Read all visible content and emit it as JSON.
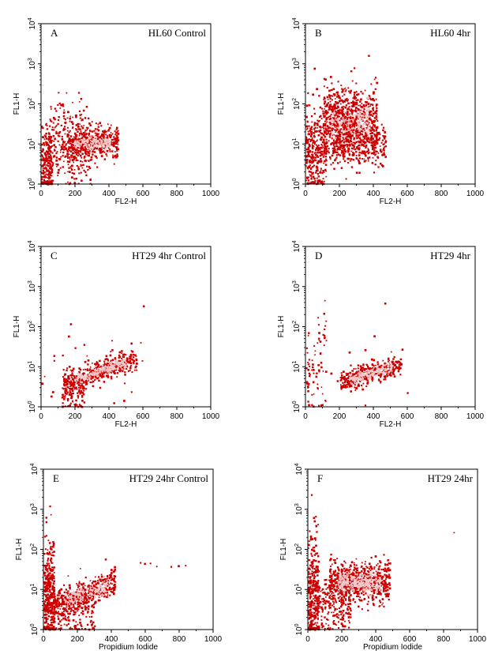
{
  "chart_data": [
    {
      "type": "scatter",
      "letter": "A",
      "title": "HL60 Control",
      "xlabel": "FL2-H",
      "ylabel": "FL1-H",
      "xlim": [
        0,
        1000
      ],
      "ylim_log10": [
        0,
        4
      ],
      "yscale": "log",
      "xticks": [
        "0",
        "200",
        "400",
        "600",
        "800",
        "1000"
      ],
      "yticks": [
        "10",
        "10",
        "10",
        "10",
        "10"
      ],
      "ytick_exponents": [
        "0",
        "1",
        "2",
        "3",
        "4"
      ],
      "point_color": "#cc0000",
      "core_color": "#f2c6c6",
      "clusters": [
        {
          "x_range": [
            0,
            60
          ],
          "log_y_center": 0.45,
          "log_y_spread": 0.5,
          "n": 220
        },
        {
          "x_range": [
            40,
            300
          ],
          "log_y_center": 0.85,
          "log_y_spread": 0.45,
          "n": 260
        },
        {
          "x_range": [
            150,
            450
          ],
          "log_y_center": 1.05,
          "log_y_spread": 0.18,
          "n": 380,
          "dense": true
        },
        {
          "x_range": [
            60,
            260
          ],
          "log_y_center": 1.55,
          "log_y_spread": 0.3,
          "n": 60
        }
      ]
    },
    {
      "type": "scatter",
      "letter": "B",
      "title": "HL60 4hr",
      "xlabel": "FL2-H",
      "ylabel": "FL1-H",
      "xlim": [
        0,
        1000
      ],
      "ylim_log10": [
        0,
        4
      ],
      "yscale": "log",
      "xticks": [
        "0",
        "200",
        "400",
        "600",
        "800",
        "1000"
      ],
      "yticks": [
        "10",
        "10",
        "10",
        "10",
        "10"
      ],
      "ytick_exponents": [
        "0",
        "1",
        "2",
        "3",
        "4"
      ],
      "point_color": "#cc0000",
      "core_color": "#f2c6c6",
      "clusters": [
        {
          "x_range": [
            0,
            120
          ],
          "log_y_center": 0.9,
          "log_y_spread": 0.6,
          "n": 320
        },
        {
          "x_range": [
            100,
            420
          ],
          "log_y_center": 1.5,
          "log_y_spread": 0.45,
          "n": 650,
          "dense": true
        },
        {
          "x_range": [
            150,
            470
          ],
          "log_y_center": 1.05,
          "log_y_spread": 0.25,
          "n": 300
        },
        {
          "x_range": [
            120,
            300
          ],
          "log_y_center": 2.0,
          "log_y_spread": 0.3,
          "n": 120
        }
      ]
    },
    {
      "type": "scatter",
      "letter": "C",
      "title": "HT29 4hr Control",
      "xlabel": "FL2-H",
      "ylabel": "FL1-H",
      "xlim": [
        0,
        1000
      ],
      "ylim_log10": [
        0,
        4
      ],
      "yscale": "log",
      "xticks": [
        "0",
        "200",
        "400",
        "600",
        "800",
        "1000"
      ],
      "yticks": [
        "10",
        "10",
        "10",
        "10",
        "10"
      ],
      "ytick_exponents": [
        "0",
        "1",
        "2",
        "3",
        "4"
      ],
      "point_color": "#cc0000",
      "core_color": "#f2c6c6",
      "clusters": [
        {
          "x_range": [
            130,
            560
          ],
          "log_y_center": 0.9,
          "log_y_spread": 0.14,
          "n": 420,
          "dense": true,
          "slope": 0.0015
        },
        {
          "x_range": [
            120,
            250
          ],
          "log_y_center": 0.35,
          "log_y_spread": 0.3,
          "n": 90
        },
        {
          "x_range": [
            0,
            600
          ],
          "log_y_center": 1.2,
          "log_y_spread": 0.7,
          "n": 25
        }
      ]
    },
    {
      "type": "scatter",
      "letter": "D",
      "title": "HT29 4hr",
      "xlabel": "FL2-H",
      "ylabel": "FL1-H",
      "xlim": [
        0,
        1000
      ],
      "ylim_log10": [
        0,
        4
      ],
      "yscale": "log",
      "xticks": [
        "0",
        "200",
        "400",
        "600",
        "800",
        "1000"
      ],
      "yticks": [
        "10",
        "10",
        "10",
        "10",
        "10"
      ],
      "ytick_exponents": [
        "0",
        "1",
        "2",
        "3",
        "4"
      ],
      "point_color": "#cc0000",
      "core_color": "#f2c6c6",
      "clusters": [
        {
          "x_range": [
            200,
            560
          ],
          "log_y_center": 0.85,
          "log_y_spread": 0.13,
          "n": 380,
          "dense": true,
          "slope": 0.0012
        },
        {
          "x_range": [
            0,
            120
          ],
          "log_y_center": 0.9,
          "log_y_spread": 0.7,
          "n": 70
        },
        {
          "x_range": [
            0,
            600
          ],
          "log_y_center": 1.3,
          "log_y_spread": 0.7,
          "n": 20
        }
      ]
    },
    {
      "type": "scatter",
      "letter": "E",
      "title": "HT29 24hr Control",
      "xlabel": "Propidium Iodide",
      "ylabel": "FL1-H",
      "xlim": [
        0,
        1000
      ],
      "ylim_log10": [
        0,
        4
      ],
      "yscale": "log",
      "xticks": [
        "0",
        "200",
        "400",
        "600",
        "800",
        "1000"
      ],
      "yticks": [
        "10",
        "10",
        "10",
        "10",
        "10"
      ],
      "ytick_exponents": [
        "0",
        "1",
        "2",
        "3",
        "4"
      ],
      "point_color": "#cc0000",
      "core_color": "#f2c6c6",
      "clusters": [
        {
          "x_range": [
            0,
            60
          ],
          "log_y_center": 0.9,
          "log_y_spread": 0.7,
          "n": 380
        },
        {
          "x_range": [
            60,
            420
          ],
          "log_y_center": 0.9,
          "log_y_spread": 0.18,
          "n": 420,
          "dense": true,
          "slope": 0.0015
        },
        {
          "x_range": [
            60,
            300
          ],
          "log_y_center": 0.4,
          "log_y_spread": 0.3,
          "n": 140
        },
        {
          "x_range": [
            560,
            880
          ],
          "log_y_center": 1.6,
          "log_y_spread": 0.05,
          "n": 7
        }
      ]
    },
    {
      "type": "scatter",
      "letter": "F",
      "title": "HT29 24hr",
      "xlabel": "Propidium Iodide",
      "ylabel": "FL1-H",
      "xlim": [
        0,
        1000
      ],
      "ylim_log10": [
        0,
        4
      ],
      "yscale": "log",
      "xticks": [
        "0",
        "200",
        "400",
        "600",
        "800",
        "1000"
      ],
      "yticks": [
        "10",
        "10",
        "10",
        "10",
        "10"
      ],
      "ytick_exponents": [
        "0",
        "1",
        "2",
        "3",
        "4"
      ],
      "point_color": "#cc0000",
      "core_color": "#f2c6c6",
      "clusters": [
        {
          "x_range": [
            0,
            60
          ],
          "log_y_center": 0.9,
          "log_y_spread": 0.75,
          "n": 360
        },
        {
          "x_range": [
            120,
            480
          ],
          "log_y_center": 1.2,
          "log_y_spread": 0.25,
          "n": 650,
          "dense": true
        },
        {
          "x_range": [
            60,
            250
          ],
          "log_y_center": 0.55,
          "log_y_spread": 0.35,
          "n": 200
        },
        {
          "x_range": [
            850,
            860
          ],
          "log_y_center": 2.4,
          "log_y_spread": 0.02,
          "n": 1
        }
      ]
    }
  ]
}
